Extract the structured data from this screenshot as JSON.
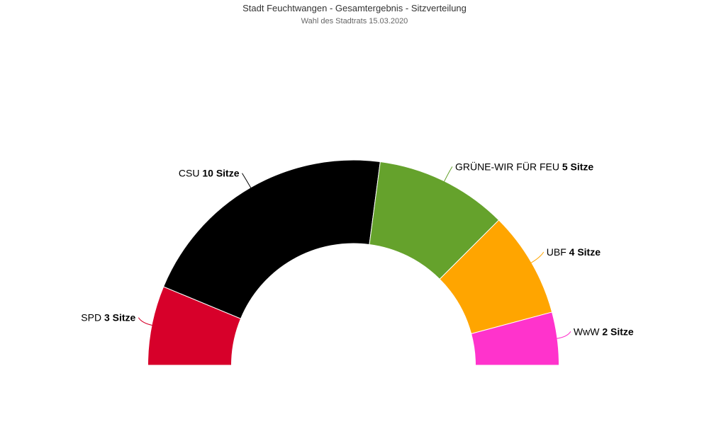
{
  "chart_data": {
    "type": "parliament-semicircle",
    "title": "Stadt Feuchtwangen - Gesamtergebnis - Sitzverteilung",
    "subtitle": "Wahl des Stadtrats 15.03.2020",
    "seat_unit": "Sitze",
    "total_seats": 24,
    "series": [
      {
        "party": "SPD",
        "seats": 3,
        "color": "#d7002a"
      },
      {
        "party": "CSU",
        "seats": 10,
        "color": "#000000"
      },
      {
        "party": "GRÜNE-WIR FÜR FEU",
        "seats": 5,
        "color": "#65a22c"
      },
      {
        "party": "UBF",
        "seats": 4,
        "color": "#ffa500"
      },
      {
        "party": "WwW",
        "seats": 2,
        "color": "#ff33cc"
      }
    ]
  }
}
